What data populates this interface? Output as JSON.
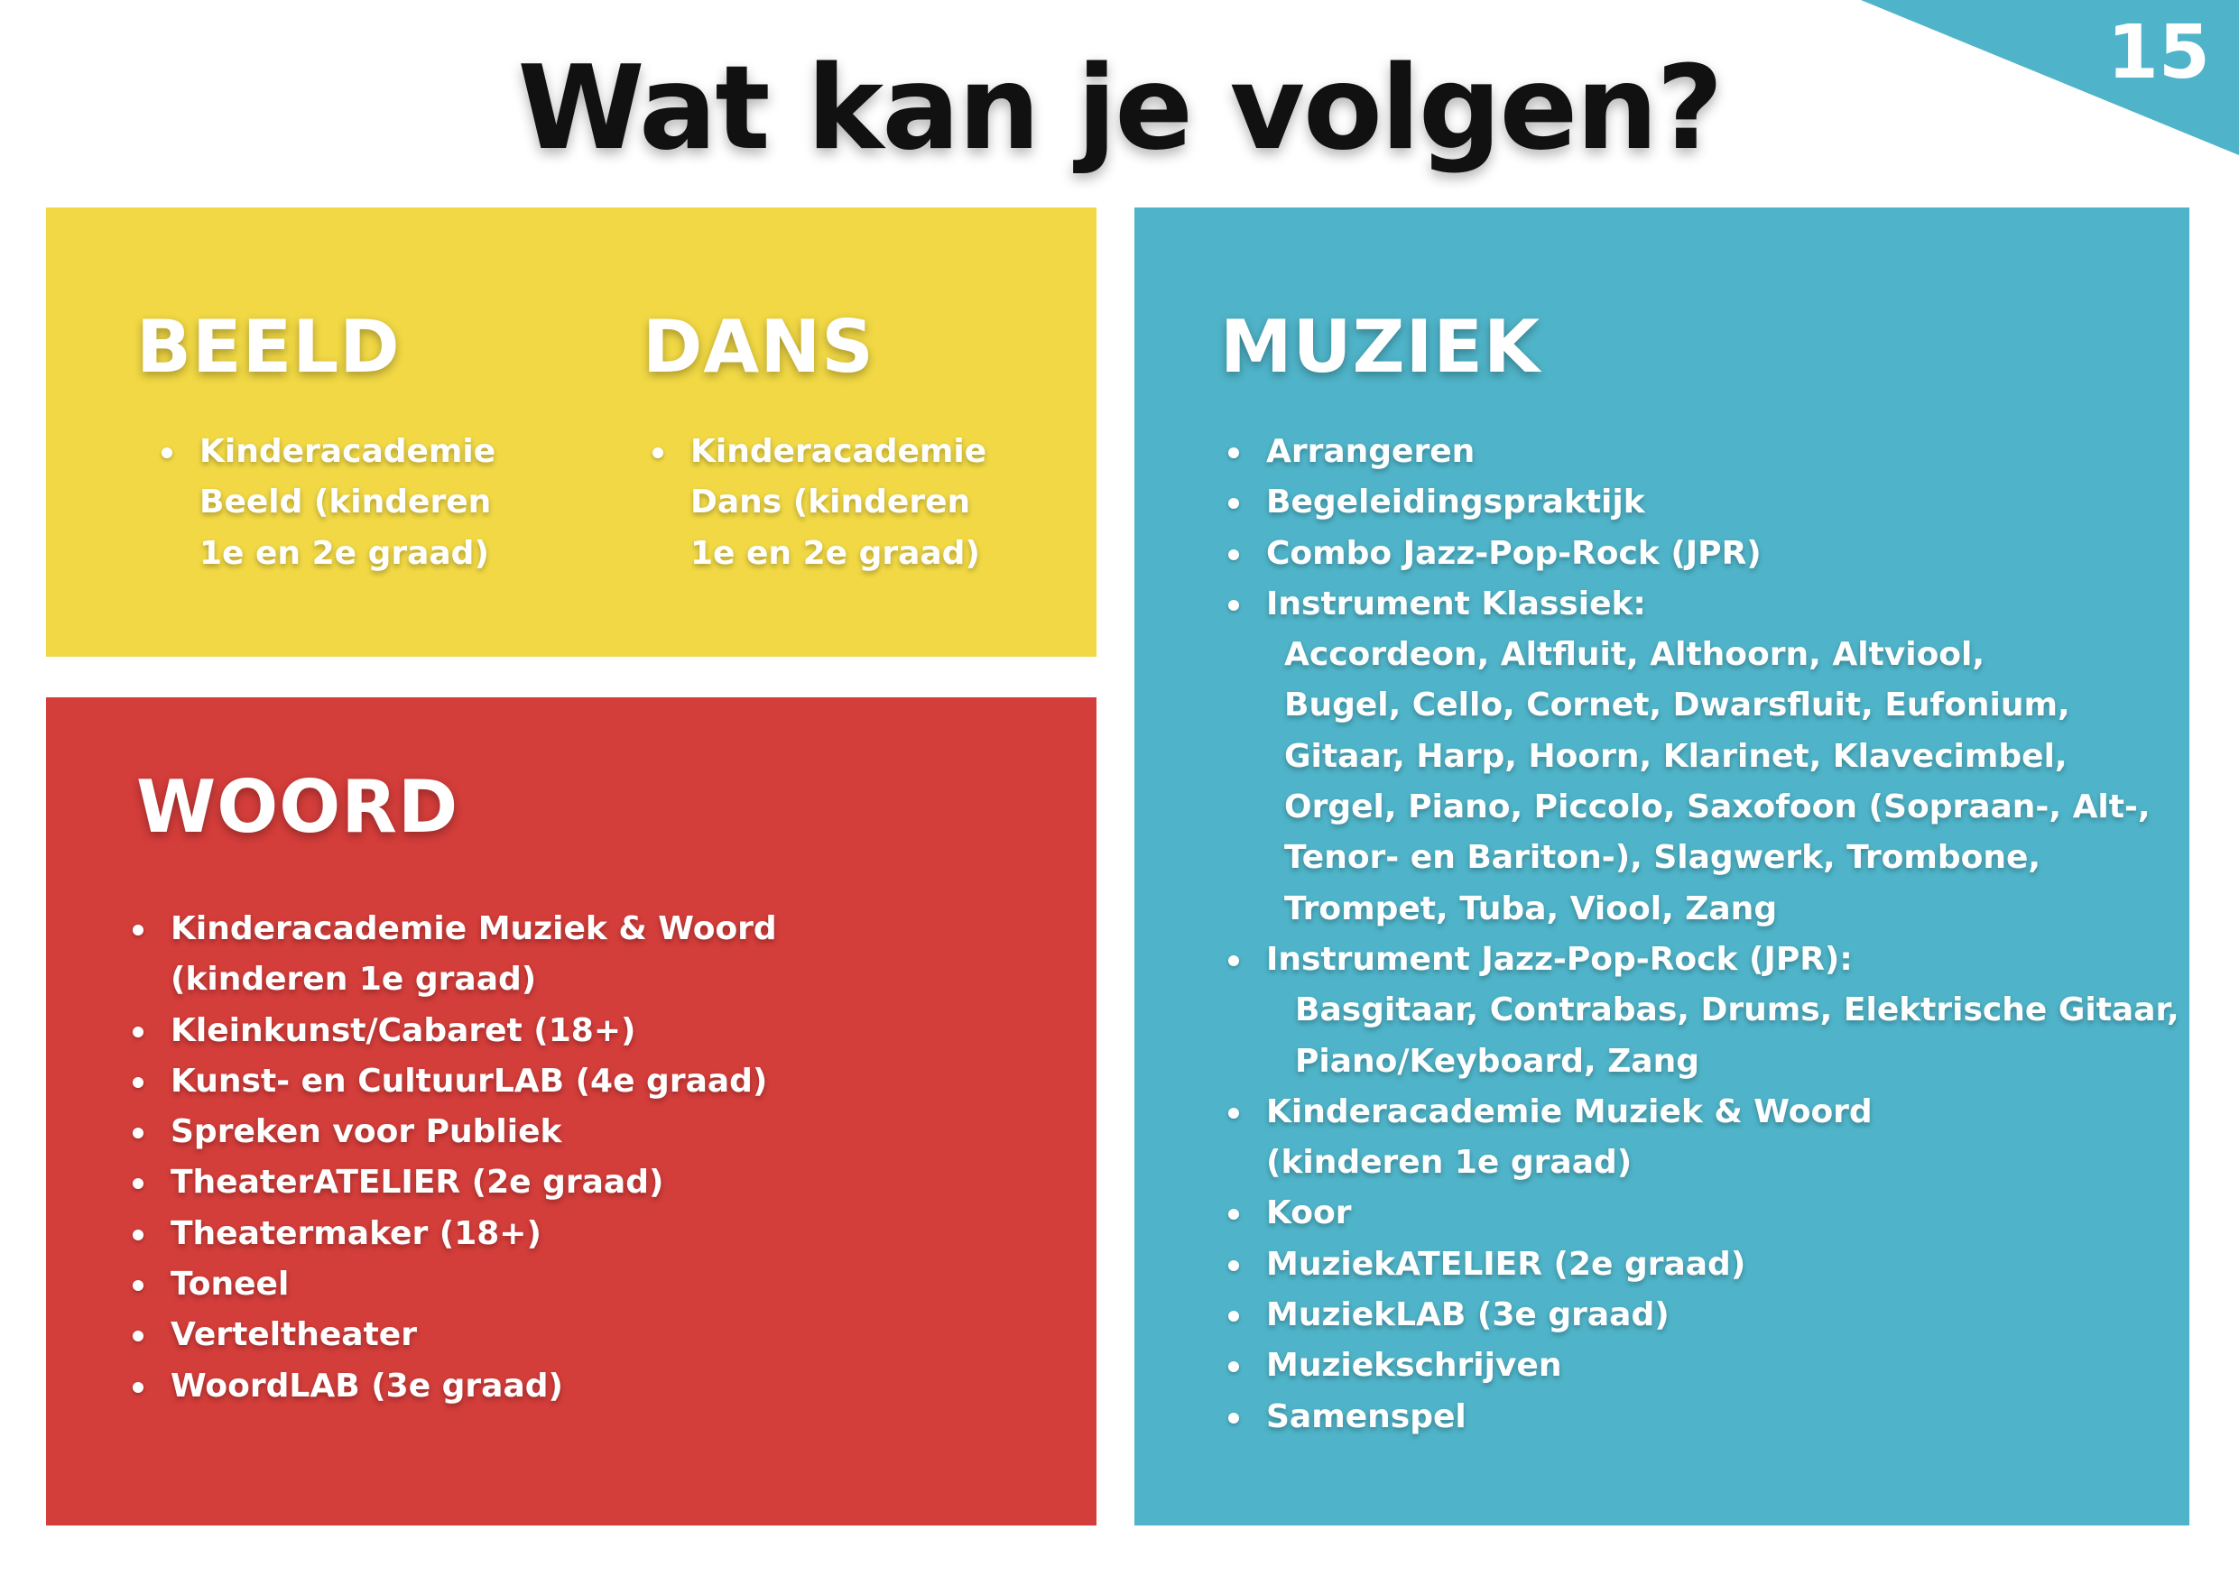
{
  "page": {
    "title": "Wat kan je volgen?",
    "number": "15",
    "colors": {
      "yellow": "#f1d844",
      "red": "#d33d3a",
      "blue": "#4fb4c9",
      "corner": "#4fb4c9",
      "title": "#111111"
    }
  },
  "beeld": {
    "heading": "BEELD",
    "items": [
      "Kinderacademie Beeld (kinderen 1e en 2e graad)"
    ]
  },
  "dans": {
    "heading": "DANS",
    "items": [
      "Kinderacademie Dans (kinderen 1e en 2e graad)"
    ]
  },
  "woord": {
    "heading": "WOORD",
    "items": [
      "Kinderacademie Muziek & Woord (kinderen 1e graad)",
      "Kleinkunst/Cabaret (18+)",
      "Kunst- en CultuurLAB (4e graad)",
      "Spreken voor Publiek",
      "TheaterATELIER (2e graad)",
      "Theatermaker (18+)",
      "Toneel",
      "Verteltheater",
      "WoordLAB (3e graad)"
    ]
  },
  "muziek": {
    "heading": "MUZIEK",
    "items": {
      "arrangeren": "Arrangeren",
      "begeleiding": "Begeleidingspraktijk",
      "combo": "Combo Jazz-Pop-Rock (JPR)",
      "klassiek": "Instrument Klassiek:",
      "klassiek_instruments": [
        "Accordeon, Altfluit, Althoorn, Altviool,",
        "Bugel, Cello, Cornet, Dwarsfluit, Eufonium,",
        "Gitaar, Harp, Hoorn, Klarinet, Klavecimbel,",
        "Orgel, Piano, Piccolo, Saxofoon (Sopraan-, Alt-,",
        "Tenor- en Bariton-), Slagwerk, Trombone,",
        "Trompet, Tuba, Viool, Zang"
      ],
      "jpr": "Instrument Jazz-Pop-Rock (JPR):",
      "jpr_instruments": [
        "Basgitaar, Contrabas, Drums, Elektrische Gitaar,",
        "Piano/Keyboard, Zang"
      ],
      "kinderacademie": "Kinderacademie Muziek & Woord",
      "kinderacademie_sub": "(kinderen 1e graad)",
      "koor": "Koor",
      "atelier": "MuziekATELIER (2e graad)",
      "lab": "MuziekLAB (3e graad)",
      "schrijven": "Muziekschrijven",
      "samenspel": "Samenspel"
    }
  }
}
